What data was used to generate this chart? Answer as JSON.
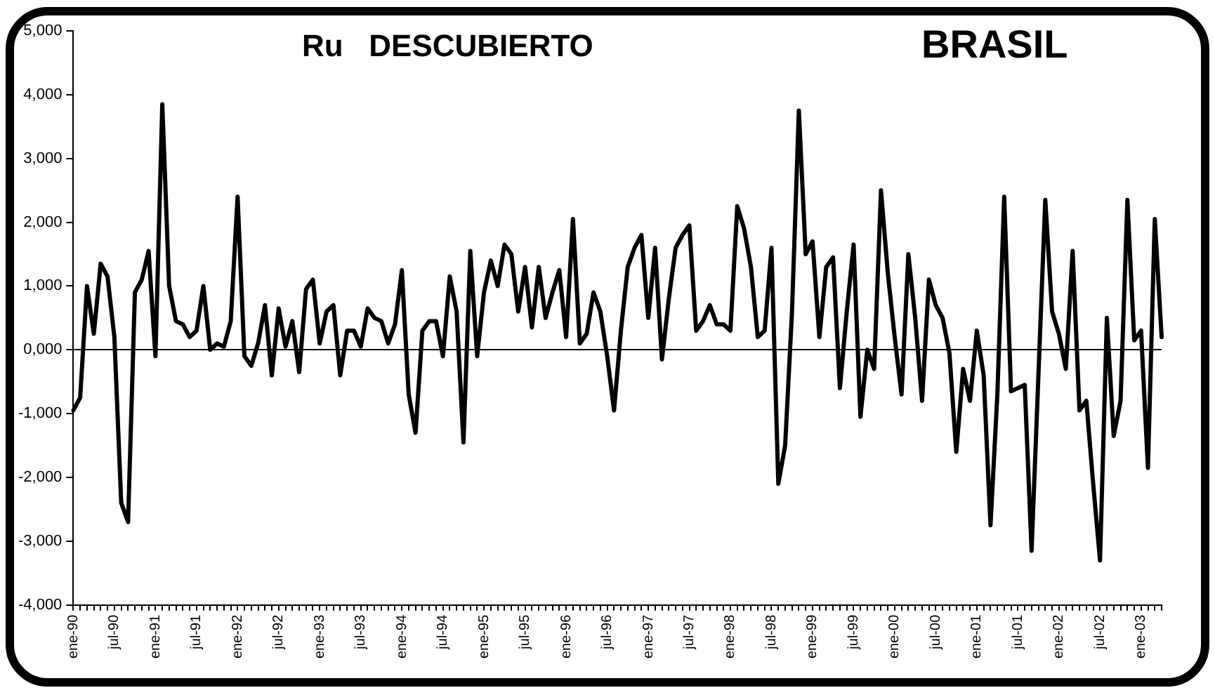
{
  "chart_data": {
    "type": "line",
    "title": "Ru   DESCUBIERTO",
    "subtitle": "BRASIL",
    "categories": [
      "ene-90",
      null,
      null,
      null,
      null,
      null,
      "jul-90",
      null,
      null,
      null,
      null,
      null,
      "ene-91",
      null,
      null,
      null,
      null,
      null,
      "jul-91",
      null,
      null,
      null,
      null,
      null,
      "ene-92",
      null,
      null,
      null,
      null,
      null,
      "jul-92",
      null,
      null,
      null,
      null,
      null,
      "ene-93",
      null,
      null,
      null,
      null,
      null,
      "jul-93",
      null,
      null,
      null,
      null,
      null,
      "ene-94",
      null,
      null,
      null,
      null,
      null,
      "jul-94",
      null,
      null,
      null,
      null,
      null,
      "ene-95",
      null,
      null,
      null,
      null,
      null,
      "jul-95",
      null,
      null,
      null,
      null,
      null,
      "ene-96",
      null,
      null,
      null,
      null,
      null,
      "jul-96",
      null,
      null,
      null,
      null,
      null,
      "ene-97",
      null,
      null,
      null,
      null,
      null,
      "jul-97",
      null,
      null,
      null,
      null,
      null,
      "ene-98",
      null,
      null,
      null,
      null,
      null,
      "jul-98",
      null,
      null,
      null,
      null,
      null,
      "ene-99",
      null,
      null,
      null,
      null,
      null,
      "jul-99",
      null,
      null,
      null,
      null,
      null,
      "ene-00",
      null,
      null,
      null,
      null,
      null,
      "jul-00",
      null,
      null,
      null,
      null,
      null,
      "ene-01",
      null,
      null,
      null,
      null,
      null,
      "jul-01",
      null,
      null,
      null,
      null,
      null,
      "ene-02",
      null,
      null,
      null,
      null,
      null,
      "jul-02",
      null,
      null,
      null,
      null,
      null,
      "ene-03",
      null,
      null,
      null
    ],
    "series": [
      {
        "color": "#000000",
        "values": [
          -950,
          -750,
          1000,
          250,
          1350,
          1150,
          200,
          -2400,
          -2700,
          900,
          1100,
          1550,
          -100,
          3850,
          1000,
          450,
          400,
          200,
          300,
          1000,
          0,
          100,
          50,
          450,
          2400,
          -100,
          -250,
          100,
          700,
          -400,
          650,
          50,
          450,
          -350,
          950,
          1100,
          100,
          600,
          700,
          -400,
          300,
          300,
          50,
          650,
          500,
          450,
          100,
          400,
          1250,
          -700,
          -1300,
          300,
          450,
          450,
          -100,
          1150,
          600,
          -1450,
          1550,
          -100,
          900,
          1400,
          1000,
          1650,
          1500,
          600,
          1300,
          350,
          1300,
          500,
          900,
          1250,
          200,
          2050,
          100,
          250,
          900,
          600,
          -100,
          -950,
          300,
          1300,
          1600,
          1800,
          500,
          1600,
          -150,
          800,
          1600,
          1800,
          1950,
          300,
          450,
          700,
          400,
          400,
          300,
          2250,
          1900,
          1300,
          200,
          300,
          1600,
          -2100,
          -1500,
          600,
          3750,
          1500,
          1700,
          200,
          1300,
          1450,
          -600,
          600,
          1650,
          -1050,
          0,
          -300,
          2500,
          1200,
          200,
          -700,
          1500,
          500,
          -800,
          1100,
          700,
          500,
          -50,
          -1600,
          -300,
          -800,
          300,
          -400,
          -2750,
          -700,
          2400,
          -650,
          -600,
          -550,
          -3150,
          -400,
          2350,
          600,
          250,
          -300,
          1550,
          -950,
          -800,
          -2100,
          -3300,
          500,
          -1350,
          -800,
          2350,
          150,
          300,
          -1850,
          2050,
          200
        ]
      }
    ],
    "ylim": [
      -4000,
      5000
    ],
    "yticks": [
      {
        "value": -4000,
        "label": "-4,000"
      },
      {
        "value": -3000,
        "label": "-3,000"
      },
      {
        "value": -2000,
        "label": "-2,000"
      },
      {
        "value": -1000,
        "label": "-1,000"
      },
      {
        "value": 0,
        "label": "0,000"
      },
      {
        "value": 1000,
        "label": "1,000"
      },
      {
        "value": 2000,
        "label": "2,000"
      },
      {
        "value": 3000,
        "label": "3,000"
      },
      {
        "value": 4000,
        "label": "4,000"
      },
      {
        "value": 5000,
        "label": "5,000"
      }
    ],
    "line_style": "solid"
  }
}
